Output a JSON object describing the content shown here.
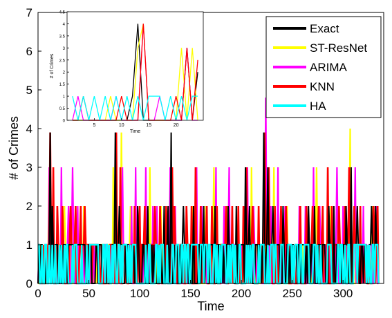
{
  "chart_data": [
    {
      "type": "line",
      "xlabel": "Time",
      "ylabel": "# of Crimes",
      "xlim": [
        0,
        340
      ],
      "ylim": [
        0,
        7
      ],
      "xticks": [
        0,
        50,
        100,
        150,
        200,
        250,
        300
      ],
      "yticks": [
        0,
        1,
        2,
        3,
        4,
        5,
        6,
        7
      ],
      "grid": false,
      "legend_position": "top-right",
      "series": [
        {
          "name": "Exact",
          "color": "#000000",
          "peaks": [
            [
              12,
              3.9
            ],
            [
              14,
              2
            ],
            [
              18,
              1
            ],
            [
              22,
              1
            ],
            [
              27,
              1
            ],
            [
              33,
              1
            ],
            [
              40,
              1
            ],
            [
              44,
              1
            ],
            [
              52,
              1
            ],
            [
              60,
              1
            ],
            [
              68,
              1
            ],
            [
              76,
              3.9
            ],
            [
              80,
              2
            ],
            [
              86,
              1
            ],
            [
              93,
              1
            ],
            [
              98,
              2
            ],
            [
              103,
              1
            ],
            [
              108,
              2
            ],
            [
              112,
              1
            ],
            [
              118,
              1
            ],
            [
              124,
              2
            ],
            [
              128,
              2
            ],
            [
              131,
              3.9
            ],
            [
              137,
              1
            ],
            [
              143,
              2
            ],
            [
              150,
              1
            ],
            [
              153,
              2
            ],
            [
              159,
              1
            ],
            [
              163,
              2
            ],
            [
              170,
              1
            ],
            [
              174,
              2
            ],
            [
              178,
              1
            ],
            [
              182,
              1
            ],
            [
              187,
              2
            ],
            [
              195,
              2
            ],
            [
              198,
              1
            ],
            [
              204,
              3
            ],
            [
              208,
              2
            ],
            [
              216,
              1
            ],
            [
              222,
              3.9
            ],
            [
              226,
              3
            ],
            [
              231,
              2
            ],
            [
              237,
              1
            ],
            [
              241,
              2
            ],
            [
              248,
              1
            ],
            [
              253,
              1
            ],
            [
              259,
              1
            ],
            [
              266,
              2
            ],
            [
              272,
              2
            ],
            [
              281,
              1
            ],
            [
              286,
              2
            ],
            [
              291,
              2
            ],
            [
              298,
              1
            ],
            [
              303,
              2
            ],
            [
              308,
              3
            ],
            [
              314,
              2
            ],
            [
              321,
              1
            ],
            [
              328,
              2
            ],
            [
              332,
              2
            ]
          ]
        },
        {
          "name": "ST-ResNet",
          "color": "#ffff00",
          "peaks": [
            [
              11,
              3
            ],
            [
              13,
              2
            ],
            [
              21,
              1
            ],
            [
              26,
              2
            ],
            [
              36,
              1
            ],
            [
              45,
              2
            ],
            [
              58,
              1
            ],
            [
              74,
              3
            ],
            [
              82,
              3.9
            ],
            [
              91,
              2
            ],
            [
              102,
              1
            ],
            [
              107,
              2
            ],
            [
              110,
              3
            ],
            [
              121,
              2
            ],
            [
              129,
              2
            ],
            [
              144,
              1
            ],
            [
              152,
              2
            ],
            [
              165,
              2
            ],
            [
              173,
              3
            ],
            [
              186,
              2
            ],
            [
              195,
              1
            ],
            [
              210,
              3
            ],
            [
              224,
              2
            ],
            [
              232,
              3
            ],
            [
              245,
              2
            ],
            [
              256,
              1
            ],
            [
              268,
              1
            ],
            [
              274,
              3
            ],
            [
              288,
              2
            ],
            [
              301,
              2
            ],
            [
              307,
              4
            ],
            [
              318,
              1
            ],
            [
              329,
              2
            ]
          ]
        },
        {
          "name": "ARIMA",
          "color": "#ff00ff",
          "peaks": [
            [
              11,
              3
            ],
            [
              15,
              2
            ],
            [
              23,
              3
            ],
            [
              30,
              2
            ],
            [
              34,
              3
            ],
            [
              39,
              2
            ],
            [
              48,
              1
            ],
            [
              57,
              1
            ],
            [
              72,
              1
            ],
            [
              83,
              3
            ],
            [
              92,
              2
            ],
            [
              96,
              3
            ],
            [
              106,
              3
            ],
            [
              113,
              2
            ],
            [
              117,
              2
            ],
            [
              130,
              3
            ],
            [
              135,
              2
            ],
            [
              140,
              1
            ],
            [
              156,
              3
            ],
            [
              161,
              2
            ],
            [
              169,
              1
            ],
            [
              175,
              3
            ],
            [
              183,
              2
            ],
            [
              188,
              3
            ],
            [
              199,
              1
            ],
            [
              206,
              3
            ],
            [
              212,
              2
            ],
            [
              218,
              1
            ],
            [
              224,
              4.8
            ],
            [
              229,
              2
            ],
            [
              236,
              3
            ],
            [
              243,
              2
            ],
            [
              250,
              1
            ],
            [
              257,
              2
            ],
            [
              263,
              2
            ],
            [
              271,
              3
            ],
            [
              277,
              2
            ],
            [
              283,
              1
            ],
            [
              294,
              3
            ],
            [
              300,
              2
            ],
            [
              312,
              3
            ],
            [
              320,
              2
            ],
            [
              326,
              1
            ],
            [
              333,
              2
            ]
          ]
        },
        {
          "name": "KNN",
          "color": "#ff0000",
          "peaks": [
            [
              12,
              3.9
            ],
            [
              15,
              3
            ],
            [
              19,
              2
            ],
            [
              24,
              2
            ],
            [
              28,
              1
            ],
            [
              32,
              2
            ],
            [
              37,
              2
            ],
            [
              42,
              2
            ],
            [
              46,
              2
            ],
            [
              55,
              1
            ],
            [
              63,
              1
            ],
            [
              77,
              3.9
            ],
            [
              81,
              3
            ],
            [
              87,
              1
            ],
            [
              95,
              2
            ],
            [
              100,
              2
            ],
            [
              105,
              2
            ],
            [
              109,
              1
            ],
            [
              115,
              2
            ],
            [
              120,
              2
            ],
            [
              126,
              2
            ],
            [
              132,
              3
            ],
            [
              134,
              2
            ],
            [
              141,
              1
            ],
            [
              146,
              2
            ],
            [
              151,
              2
            ],
            [
              155,
              3
            ],
            [
              160,
              2
            ],
            [
              166,
              2
            ],
            [
              171,
              2
            ],
            [
              176,
              2
            ],
            [
              180,
              1
            ],
            [
              185,
              2
            ],
            [
              191,
              2
            ],
            [
              197,
              2
            ],
            [
              202,
              2
            ],
            [
              205,
              3
            ],
            [
              211,
              2
            ],
            [
              217,
              2
            ],
            [
              223,
              3.9
            ],
            [
              227,
              3
            ],
            [
              233,
              2
            ],
            [
              239,
              2
            ],
            [
              244,
              2
            ],
            [
              252,
              1
            ],
            [
              258,
              2
            ],
            [
              264,
              2
            ],
            [
              270,
              2
            ],
            [
              276,
              2
            ],
            [
              280,
              2
            ],
            [
              285,
              3
            ],
            [
              289,
              2
            ],
            [
              296,
              2
            ],
            [
              302,
              2
            ],
            [
              306,
              3
            ],
            [
              311,
              2
            ],
            [
              317,
              2
            ],
            [
              323,
              1
            ],
            [
              330,
              2
            ],
            [
              334,
              2
            ]
          ]
        },
        {
          "name": "HA",
          "color": "#00ffff",
          "level": 1,
          "description_hidden": true
        }
      ]
    },
    {
      "type": "line",
      "inset": true,
      "xlabel": "Time",
      "ylabel": "# of Crimes",
      "xlim": [
        0,
        25
      ],
      "ylim": [
        0,
        4.5
      ],
      "xticks": [
        5,
        10,
        15,
        20
      ],
      "yticks": [
        0,
        0.5,
        1,
        1.5,
        2,
        2.5,
        3,
        3.5,
        4,
        4.5
      ],
      "ytick_labels": [
        "0",
        "0.5",
        "1",
        "1.5",
        "2",
        "2.5",
        "3",
        "3.5",
        "4",
        "4.5"
      ],
      "x": [
        1,
        2,
        3,
        4,
        5,
        6,
        7,
        8,
        9,
        10,
        11,
        12,
        13,
        14,
        15,
        16,
        17,
        18,
        19,
        20,
        21,
        22,
        23,
        24
      ],
      "series": [
        {
          "name": "Exact",
          "color": "#000000",
          "values": [
            0,
            0,
            0,
            0,
            0,
            0,
            0,
            0,
            0,
            0,
            0,
            1,
            4,
            0,
            0,
            0,
            0,
            0,
            0,
            0,
            0,
            3,
            0,
            2
          ]
        },
        {
          "name": "ST-ResNet",
          "color": "#ffff00",
          "values": [
            0,
            0,
            0,
            0,
            0,
            0,
            0,
            1,
            0,
            0,
            0,
            0,
            3,
            4,
            0,
            0,
            0,
            0,
            0,
            0,
            3,
            0,
            3,
            0
          ]
        },
        {
          "name": "ARIMA",
          "color": "#ff00ff",
          "values": [
            0,
            1,
            0,
            0,
            0,
            0,
            0,
            0,
            1,
            0,
            0,
            0,
            0,
            4,
            0,
            0,
            1,
            0,
            0,
            0,
            0,
            3,
            0,
            0
          ]
        },
        {
          "name": "KNN",
          "color": "#ff0000",
          "values": [
            0,
            0,
            1,
            0,
            0,
            0,
            0,
            0,
            0,
            1,
            0,
            0,
            0,
            4,
            0,
            0,
            0,
            0,
            0,
            1,
            0,
            3,
            0,
            2.5
          ]
        },
        {
          "name": "HA",
          "color": "#00ffff",
          "values": [
            1,
            0,
            1,
            0,
            1,
            0,
            1,
            0,
            1,
            0,
            1,
            0,
            1,
            0,
            1,
            1,
            1,
            0,
            1,
            0,
            1,
            0,
            1,
            1
          ]
        }
      ]
    }
  ]
}
